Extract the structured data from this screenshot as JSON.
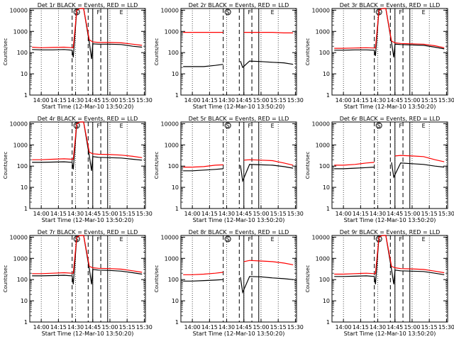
{
  "window": {
    "xlabel": "Start Time (12-Mar-10 13:50:20)",
    "ylabel": "Counts/sec"
  },
  "chart_data": [
    {
      "title": "Det 1r BLACK = Events, RED = LLD",
      "type": "line",
      "yscale": "log",
      "ylim": [
        1,
        12000
      ],
      "x_ticks": [
        "14:00",
        "14:15",
        "14:30",
        "14:45",
        "15:00",
        "15:15",
        "15:30"
      ],
      "y_ticks": [
        "1",
        "10",
        "100",
        "1000",
        "10000"
      ],
      "annotations": [
        "S",
        "F",
        "E"
      ],
      "series": [
        {
          "color": "#000000",
          "x": [
            "13:52",
            "14:00",
            "14:10",
            "14:20",
            "14:27",
            "14:28",
            "14:31",
            "14:34",
            "14:37",
            "14:42",
            "14:44",
            "14:45",
            "14:50",
            "15:00",
            "15:10",
            "15:20",
            "15:28"
          ],
          "y": [
            140,
            135,
            135,
            140,
            130,
            60,
            10000,
            12000,
            12000,
            300,
            50,
            260,
            250,
            250,
            240,
            200,
            180
          ]
        },
        {
          "color": "#ff0000",
          "x": [
            "13:52",
            "14:00",
            "14:10",
            "14:20",
            "14:27",
            "14:28",
            "14:31",
            "14:34",
            "14:37",
            "14:42",
            "14:45",
            "14:50",
            "15:00",
            "15:10",
            "15:20",
            "15:28"
          ],
          "y": [
            180,
            170,
            175,
            180,
            170,
            170,
            10000,
            12000,
            12000,
            400,
            320,
            300,
            300,
            290,
            250,
            220
          ]
        }
      ]
    },
    {
      "title": "Det 2r BLACK = Events, RED = LLD",
      "type": "line",
      "yscale": "log",
      "ylim": [
        1,
        12000
      ],
      "x_ticks": [
        "14:00",
        "14:15",
        "14:30",
        "14:45",
        "15:00",
        "15:15",
        "15:30"
      ],
      "y_ticks": [
        "1",
        "10",
        "100",
        "1000",
        "10000"
      ],
      "annotations": [
        "S",
        "F",
        "E"
      ],
      "series": [
        {
          "color": "#000000",
          "x": [
            "13:52",
            "14:00",
            "14:10",
            "14:20",
            "14:27",
            "14:30",
            "14:40",
            "14:42",
            "14:44",
            "14:50",
            "15:00",
            "15:10",
            "15:20",
            "15:28"
          ],
          "y": [
            22,
            22,
            22,
            25,
            28,
            null,
            null,
            40,
            20,
            40,
            38,
            35,
            33,
            28
          ]
        },
        {
          "color": "#ff0000",
          "x": [
            "13:52",
            "14:00",
            "14:10",
            "14:20",
            "14:27",
            "14:30",
            "14:40",
            "14:45",
            "14:50",
            "15:00",
            "15:10",
            "15:20",
            "15:28"
          ],
          "y": [
            900,
            900,
            900,
            900,
            900,
            null,
            null,
            900,
            900,
            900,
            900,
            850,
            850
          ]
        }
      ]
    },
    {
      "title": "Det 3r BLACK = Events, RED = LLD",
      "type": "line",
      "yscale": "log",
      "ylim": [
        1,
        12000
      ],
      "x_ticks": [
        "14:00",
        "14:15",
        "14:30",
        "14:45",
        "15:00",
        "15:15",
        "15:30"
      ],
      "y_ticks": [
        "1",
        "10",
        "100",
        "1000",
        "10000"
      ],
      "annotations": [
        "S",
        "F",
        "E"
      ],
      "series": [
        {
          "color": "#000000",
          "x": [
            "13:52",
            "14:00",
            "14:10",
            "14:20",
            "14:27",
            "14:28",
            "14:31",
            "14:34",
            "14:37",
            "14:42",
            "14:44",
            "14:45",
            "14:50",
            "15:00",
            "15:10",
            "15:20",
            "15:28"
          ],
          "y": [
            130,
            130,
            135,
            135,
            130,
            70,
            10000,
            12000,
            12000,
            300,
            60,
            250,
            240,
            230,
            220,
            180,
            150
          ]
        },
        {
          "color": "#ff0000",
          "x": [
            "13:52",
            "14:00",
            "14:10",
            "14:20",
            "14:27",
            "14:28",
            "14:31",
            "14:34",
            "14:37",
            "14:42",
            "14:45",
            "14:50",
            "15:00",
            "15:10",
            "15:20",
            "15:28"
          ],
          "y": [
            160,
            160,
            165,
            170,
            165,
            165,
            10000,
            12000,
            12000,
            350,
            290,
            270,
            260,
            250,
            210,
            170
          ]
        }
      ]
    },
    {
      "title": "Det 4r BLACK = Events, RED = LLD",
      "type": "line",
      "yscale": "log",
      "ylim": [
        1,
        12000
      ],
      "x_ticks": [
        "14:00",
        "14:15",
        "14:30",
        "14:45",
        "15:00",
        "15:15",
        "15:30"
      ],
      "y_ticks": [
        "1",
        "10",
        "100",
        "1000",
        "10000"
      ],
      "annotations": [
        "S",
        "F",
        "E"
      ],
      "series": [
        {
          "color": "#000000",
          "x": [
            "13:52",
            "14:00",
            "14:10",
            "14:20",
            "14:27",
            "14:28",
            "14:31",
            "14:34",
            "14:37",
            "14:42",
            "14:44",
            "14:45",
            "14:50",
            "15:00",
            "15:10",
            "15:20",
            "15:28"
          ],
          "y": [
            150,
            150,
            155,
            160,
            150,
            70,
            10000,
            12000,
            12000,
            300,
            60,
            280,
            260,
            250,
            240,
            210,
            190
          ]
        },
        {
          "color": "#ff0000",
          "x": [
            "13:52",
            "14:00",
            "14:10",
            "14:20",
            "14:27",
            "14:28",
            "14:31",
            "14:34",
            "14:37",
            "14:42",
            "14:45",
            "14:50",
            "15:00",
            "15:10",
            "15:20",
            "15:28"
          ],
          "y": [
            200,
            200,
            210,
            220,
            210,
            210,
            10000,
            12000,
            12000,
            450,
            380,
            360,
            350,
            330,
            290,
            250
          ]
        }
      ]
    },
    {
      "title": "Det 5r BLACK = Events, RED = LLD",
      "type": "line",
      "yscale": "log",
      "ylim": [
        1,
        12000
      ],
      "x_ticks": [
        "14:00",
        "14:15",
        "14:30",
        "14:45",
        "15:00",
        "15:15",
        "15:30"
      ],
      "y_ticks": [
        "1",
        "10",
        "100",
        "1000",
        "10000"
      ],
      "annotations": [
        "S",
        "F",
        "E"
      ],
      "series": [
        {
          "color": "#000000",
          "x": [
            "13:52",
            "14:00",
            "14:10",
            "14:20",
            "14:27",
            "14:30",
            "14:40",
            "14:42",
            "14:44",
            "14:50",
            "15:00",
            "15:10",
            "15:20",
            "15:28"
          ],
          "y": [
            60,
            60,
            65,
            70,
            75,
            null,
            null,
            110,
            20,
            120,
            115,
            110,
            95,
            80
          ]
        },
        {
          "color": "#ff0000",
          "x": [
            "13:52",
            "14:00",
            "14:10",
            "14:20",
            "14:27",
            "14:30",
            "14:40",
            "14:45",
            "14:50",
            "15:00",
            "15:10",
            "15:20",
            "15:28"
          ],
          "y": [
            90,
            90,
            95,
            110,
            115,
            null,
            null,
            190,
            200,
            190,
            180,
            140,
            110
          ]
        }
      ]
    },
    {
      "title": "Det 6r BLACK = Events, RED = LLD",
      "type": "line",
      "yscale": "log",
      "ylim": [
        1,
        12000
      ],
      "x_ticks": [
        "14:00",
        "14:15",
        "14:30",
        "14:45",
        "15:00",
        "15:15",
        "15:30"
      ],
      "y_ticks": [
        "1",
        "10",
        "100",
        "1000",
        "10000"
      ],
      "annotations": [
        "S",
        "F",
        "E"
      ],
      "series": [
        {
          "color": "#000000",
          "x": [
            "13:52",
            "14:00",
            "14:10",
            "14:20",
            "14:27",
            "14:30",
            "14:40",
            "14:42",
            "14:44",
            "14:50",
            "15:00",
            "15:10",
            "15:20",
            "15:28"
          ],
          "y": [
            75,
            75,
            80,
            85,
            90,
            null,
            null,
            150,
            30,
            140,
            130,
            120,
            100,
            90
          ]
        },
        {
          "color": "#ff0000",
          "x": [
            "13:52",
            "14:00",
            "14:10",
            "14:20",
            "14:27",
            "14:30",
            "14:40",
            "14:45",
            "14:50",
            "15:00",
            "15:10",
            "15:20",
            "15:28"
          ],
          "y": [
            110,
            110,
            120,
            140,
            150,
            null,
            null,
            300,
            320,
            300,
            280,
            200,
            160
          ]
        }
      ]
    },
    {
      "title": "Det 7r BLACK = Events, RED = LLD",
      "type": "line",
      "yscale": "log",
      "ylim": [
        1,
        12000
      ],
      "x_ticks": [
        "14:00",
        "14:15",
        "14:30",
        "14:45",
        "15:00",
        "15:15",
        "15:30"
      ],
      "y_ticks": [
        "1",
        "10",
        "100",
        "1000",
        "10000"
      ],
      "annotations": [
        "S",
        "F",
        "E"
      ],
      "series": [
        {
          "color": "#000000",
          "x": [
            "13:52",
            "14:00",
            "14:10",
            "14:20",
            "14:27",
            "14:28",
            "14:31",
            "14:34",
            "14:37",
            "14:42",
            "14:44",
            "14:45",
            "14:50",
            "15:00",
            "15:10",
            "15:20",
            "15:28"
          ],
          "y": [
            150,
            150,
            155,
            160,
            150,
            60,
            10000,
            12000,
            12000,
            320,
            60,
            300,
            280,
            270,
            250,
            210,
            180
          ]
        },
        {
          "color": "#ff0000",
          "x": [
            "13:52",
            "14:00",
            "14:10",
            "14:20",
            "14:27",
            "14:28",
            "14:31",
            "14:34",
            "14:37",
            "14:42",
            "14:45",
            "14:50",
            "15:00",
            "15:10",
            "15:20",
            "15:28"
          ],
          "y": [
            190,
            190,
            200,
            210,
            200,
            200,
            10000,
            12000,
            12000,
            420,
            360,
            340,
            330,
            310,
            260,
            220
          ]
        }
      ]
    },
    {
      "title": "Det 8r BLACK = Events, RED = LLD",
      "type": "line",
      "yscale": "log",
      "ylim": [
        1,
        12000
      ],
      "x_ticks": [
        "14:00",
        "14:15",
        "14:30",
        "14:45",
        "15:00",
        "15:15",
        "15:30"
      ],
      "y_ticks": [
        "1",
        "10",
        "100",
        "1000",
        "10000"
      ],
      "annotations": [
        "S",
        "F",
        "E"
      ],
      "series": [
        {
          "color": "#000000",
          "x": [
            "13:52",
            "14:00",
            "14:10",
            "14:20",
            "14:27",
            "14:30",
            "14:40",
            "14:42",
            "14:44",
            "14:50",
            "15:00",
            "15:10",
            "15:20",
            "15:28"
          ],
          "y": [
            85,
            85,
            90,
            95,
            100,
            null,
            null,
            130,
            25,
            140,
            135,
            120,
            110,
            100
          ]
        },
        {
          "color": "#ff0000",
          "x": [
            "13:52",
            "14:00",
            "14:10",
            "14:20",
            "14:27",
            "14:30",
            "14:40",
            "14:45",
            "14:50",
            "15:00",
            "15:10",
            "15:20",
            "15:28"
          ],
          "y": [
            170,
            170,
            180,
            200,
            220,
            null,
            null,
            700,
            800,
            750,
            700,
            600,
            500
          ]
        }
      ]
    },
    {
      "title": "Det 9r BLACK = Events, RED = LLD",
      "type": "line",
      "yscale": "log",
      "ylim": [
        1,
        12000
      ],
      "x_ticks": [
        "14:00",
        "14:15",
        "14:30",
        "14:45",
        "15:00",
        "15:15",
        "15:30"
      ],
      "y_ticks": [
        "1",
        "10",
        "100",
        "1000",
        "10000"
      ],
      "annotations": [
        "S",
        "F",
        "E"
      ],
      "series": [
        {
          "color": "#000000",
          "x": [
            "13:52",
            "14:00",
            "14:10",
            "14:20",
            "14:27",
            "14:28",
            "14:31",
            "14:34",
            "14:37",
            "14:42",
            "14:44",
            "14:45",
            "14:50",
            "15:00",
            "15:10",
            "15:20",
            "15:28"
          ],
          "y": [
            140,
            140,
            145,
            150,
            140,
            60,
            10000,
            12000,
            12000,
            300,
            60,
            280,
            260,
            250,
            240,
            200,
            170
          ]
        },
        {
          "color": "#ff0000",
          "x": [
            "13:52",
            "14:00",
            "14:10",
            "14:20",
            "14:27",
            "14:28",
            "14:31",
            "14:34",
            "14:37",
            "14:42",
            "14:45",
            "14:50",
            "15:00",
            "15:10",
            "15:20",
            "15:28"
          ],
          "y": [
            180,
            180,
            190,
            200,
            190,
            190,
            10000,
            12000,
            12000,
            420,
            360,
            330,
            320,
            300,
            250,
            210
          ]
        }
      ]
    }
  ]
}
